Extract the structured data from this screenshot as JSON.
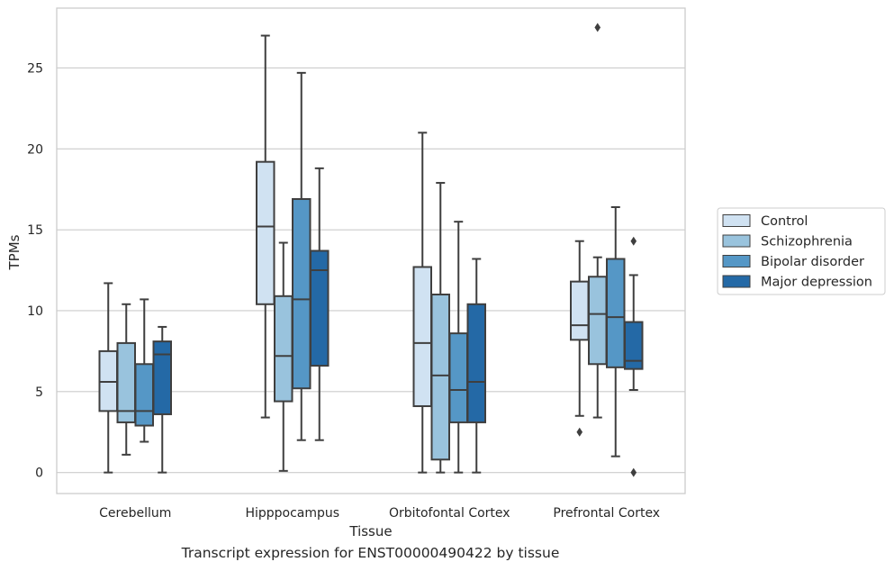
{
  "caption": "Transcript expression for ENST00000490422 by tissue",
  "chart_data": {
    "type": "boxplot",
    "xlabel": "Tissue",
    "ylabel": "TPMs",
    "ylim": [
      -1.3,
      28.7
    ],
    "yticks": [
      0,
      5,
      10,
      15,
      20,
      25
    ],
    "grid": "horizontal",
    "legend_position": "right",
    "categories": [
      "Cerebellum",
      "Hipppocampus",
      "Orbitofontal Cortex",
      "Prefrontal Cortex"
    ],
    "series": [
      {
        "name": "Control",
        "color": "#d0e2f2",
        "boxes": [
          {
            "whislo": 0.0,
            "q1": 3.8,
            "med": 5.6,
            "q3": 7.5,
            "whishi": 11.7,
            "fliers": []
          },
          {
            "whislo": 3.4,
            "q1": 10.4,
            "med": 15.2,
            "q3": 19.2,
            "whishi": 27.0,
            "fliers": []
          },
          {
            "whislo": 0.0,
            "q1": 4.1,
            "med": 8.0,
            "q3": 12.7,
            "whishi": 21.0,
            "fliers": []
          },
          {
            "whislo": 3.5,
            "q1": 8.2,
            "med": 9.1,
            "q3": 11.8,
            "whishi": 14.3,
            "fliers": [
              2.5
            ]
          }
        ]
      },
      {
        "name": "Schizophrenia",
        "color": "#99c3dd",
        "boxes": [
          {
            "whislo": 1.1,
            "q1": 3.1,
            "med": 3.8,
            "q3": 8.0,
            "whishi": 10.4,
            "fliers": []
          },
          {
            "whislo": 0.1,
            "q1": 4.4,
            "med": 7.2,
            "q3": 10.9,
            "whishi": 14.2,
            "fliers": []
          },
          {
            "whislo": 0.0,
            "q1": 0.8,
            "med": 6.0,
            "q3": 11.0,
            "whishi": 17.9,
            "fliers": []
          },
          {
            "whislo": 3.4,
            "q1": 6.7,
            "med": 9.8,
            "q3": 12.1,
            "whishi": 13.3,
            "fliers": [
              27.5
            ]
          }
        ]
      },
      {
        "name": "Bipolar disorder",
        "color": "#5597c6",
        "boxes": [
          {
            "whislo": 1.9,
            "q1": 2.9,
            "med": 3.8,
            "q3": 6.7,
            "whishi": 10.7,
            "fliers": []
          },
          {
            "whislo": 2.0,
            "q1": 5.2,
            "med": 10.7,
            "q3": 16.9,
            "whishi": 24.7,
            "fliers": []
          },
          {
            "whislo": 0.0,
            "q1": 3.1,
            "med": 5.1,
            "q3": 8.6,
            "whishi": 15.5,
            "fliers": []
          },
          {
            "whislo": 1.0,
            "q1": 6.5,
            "med": 9.6,
            "q3": 13.2,
            "whishi": 16.4,
            "fliers": []
          }
        ]
      },
      {
        "name": "Major depression",
        "color": "#2469a6",
        "boxes": [
          {
            "whislo": 0.0,
            "q1": 3.6,
            "med": 7.3,
            "q3": 8.1,
            "whishi": 9.0,
            "fliers": []
          },
          {
            "whislo": 2.0,
            "q1": 6.6,
            "med": 12.5,
            "q3": 13.7,
            "whishi": 18.8,
            "fliers": []
          },
          {
            "whislo": 0.0,
            "q1": 3.1,
            "med": 5.6,
            "q3": 10.4,
            "whishi": 13.2,
            "fliers": []
          },
          {
            "whislo": 5.1,
            "q1": 6.4,
            "med": 6.9,
            "q3": 9.3,
            "whishi": 12.2,
            "fliers": [
              14.3,
              0.0
            ]
          }
        ]
      }
    ]
  }
}
